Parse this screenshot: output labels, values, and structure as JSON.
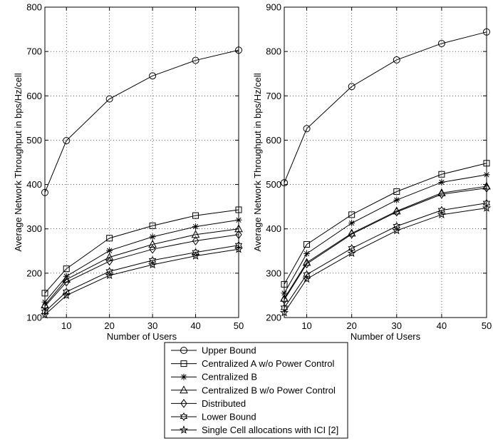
{
  "chart_data": [
    {
      "type": "line",
      "title": "",
      "xlabel": "Number of Users",
      "ylabel": "Average Network Throughput in bps/Hz/cell",
      "xlim": [
        5,
        50
      ],
      "ylim": [
        100,
        800
      ],
      "xticks": [
        10,
        20,
        30,
        40,
        50
      ],
      "yticks": [
        100,
        200,
        300,
        400,
        500,
        600,
        700,
        800
      ],
      "grid": true,
      "x": [
        5,
        10,
        20,
        30,
        40,
        50
      ],
      "series": [
        {
          "name": "Upper Bound",
          "marker": "circle",
          "values": [
            382,
            499,
            593,
            645,
            680,
            703
          ]
        },
        {
          "name": "Centralized A w/o Power Control",
          "marker": "square",
          "values": [
            155,
            210,
            279,
            307,
            330,
            343
          ]
        },
        {
          "name": "Centralized B",
          "marker": "asterisk",
          "values": [
            135,
            193,
            251,
            282,
            305,
            320
          ]
        },
        {
          "name": "Centralized B w/o Power Control",
          "marker": "triangle",
          "values": [
            128,
            186,
            236,
            265,
            287,
            300
          ]
        },
        {
          "name": "Distributed",
          "marker": "diamond",
          "values": [
            125,
            180,
            227,
            254,
            273,
            287
          ]
        },
        {
          "name": "Lower Bound",
          "marker": "hexagram",
          "values": [
            113,
            158,
            204,
            229,
            247,
            263
          ]
        },
        {
          "name": "Single Cell allocations with ICI [2]",
          "marker": "pentagram",
          "values": [
            106,
            150,
            195,
            219,
            239,
            254
          ]
        }
      ]
    },
    {
      "type": "line",
      "title": "",
      "xlabel": "Number of Users",
      "ylabel": "Average Network Throughput in bps/Hz/cell",
      "xlim": [
        5,
        50
      ],
      "ylim": [
        200,
        900
      ],
      "xticks": [
        10,
        20,
        30,
        40,
        50
      ],
      "yticks": [
        200,
        300,
        400,
        500,
        600,
        700,
        800,
        900
      ],
      "grid": true,
      "x": [
        5,
        10,
        20,
        30,
        40,
        50
      ],
      "series": [
        {
          "name": "Upper Bound",
          "marker": "circle",
          "values": [
            504,
            626,
            721,
            781,
            818,
            844
          ]
        },
        {
          "name": "Centralized A w/o Power Control",
          "marker": "square",
          "values": [
            275,
            365,
            432,
            484,
            523,
            548
          ]
        },
        {
          "name": "Centralized B",
          "marker": "asterisk",
          "values": [
            255,
            344,
            413,
            465,
            505,
            522
          ]
        },
        {
          "name": "Centralized B w/o Power Control",
          "marker": "triangle",
          "values": [
            243,
            324,
            390,
            440,
            481,
            496
          ]
        },
        {
          "name": "Distributed",
          "marker": "diamond",
          "values": [
            240,
            321,
            388,
            438,
            478,
            492
          ]
        },
        {
          "name": "Lower Bound",
          "marker": "hexagram",
          "values": [
            222,
            297,
            356,
            406,
            442,
            458
          ]
        },
        {
          "name": "Single Cell allocations with ICI [2]",
          "marker": "pentagram",
          "values": [
            211,
            287,
            345,
            396,
            432,
            447
          ]
        }
      ]
    }
  ],
  "legend": {
    "placement": "bottom-center",
    "entries": [
      {
        "label": "Upper Bound",
        "marker": "circle"
      },
      {
        "label": "Centralized A w/o Power Control",
        "marker": "square"
      },
      {
        "label": "Centralized B",
        "marker": "asterisk"
      },
      {
        "label": "Centralized B w/o Power Control",
        "marker": "triangle"
      },
      {
        "label": "Distributed",
        "marker": "diamond"
      },
      {
        "label": "Lower Bound",
        "marker": "hexagram"
      },
      {
        "label": "Single Cell allocations with ICI [2]",
        "marker": "pentagram"
      }
    ]
  }
}
